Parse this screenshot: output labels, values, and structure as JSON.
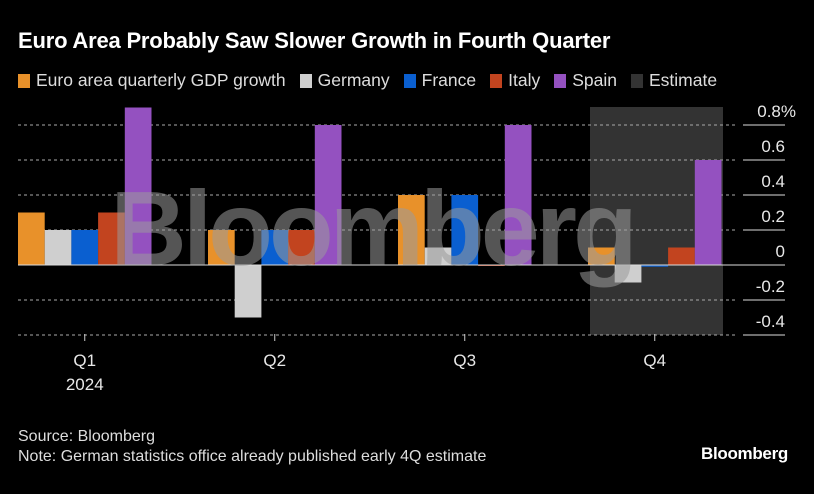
{
  "chart_data": {
    "type": "bar",
    "title": "Euro Area Probably Saw Slower Growth in Fourth Quarter",
    "categories": [
      "Q1",
      "Q2",
      "Q3",
      "Q4"
    ],
    "category_sublabels": [
      "2024",
      "",
      "",
      ""
    ],
    "series": [
      {
        "name": "Euro area quarterly GDP growth",
        "color": "#e8912a",
        "values": [
          0.3,
          0.2,
          0.4,
          0.1
        ]
      },
      {
        "name": "Germany",
        "color": "#cfcfcf",
        "values": [
          0.2,
          -0.3,
          0.1,
          -0.1
        ]
      },
      {
        "name": "France",
        "color": "#0a5fd0",
        "values": [
          0.2,
          0.2,
          0.4,
          -0.01
        ]
      },
      {
        "name": "Italy",
        "color": "#c2441f",
        "values": [
          0.3,
          0.2,
          0.0,
          0.1
        ]
      },
      {
        "name": "Spain",
        "color": "#9451c0",
        "values": [
          0.9,
          0.8,
          0.8,
          0.6
        ]
      }
    ],
    "estimate": {
      "name": "Estimate",
      "color": "#333333",
      "category": "Q4"
    },
    "y_ticks": [
      "0.8%",
      "0.6",
      "0.4",
      "0.2",
      "0",
      "-0.2",
      "-0.4"
    ],
    "y_tick_values": [
      0.8,
      0.6,
      0.4,
      0.2,
      0,
      -0.2,
      -0.4
    ],
    "ylim": [
      -0.4,
      0.9
    ],
    "grid": true,
    "legend": "top"
  },
  "watermark": "Bloomberg",
  "footer": {
    "source": "Source: Bloomberg",
    "note": "Note: German statistics office already published early 4Q estimate",
    "brand": "Bloomberg"
  }
}
